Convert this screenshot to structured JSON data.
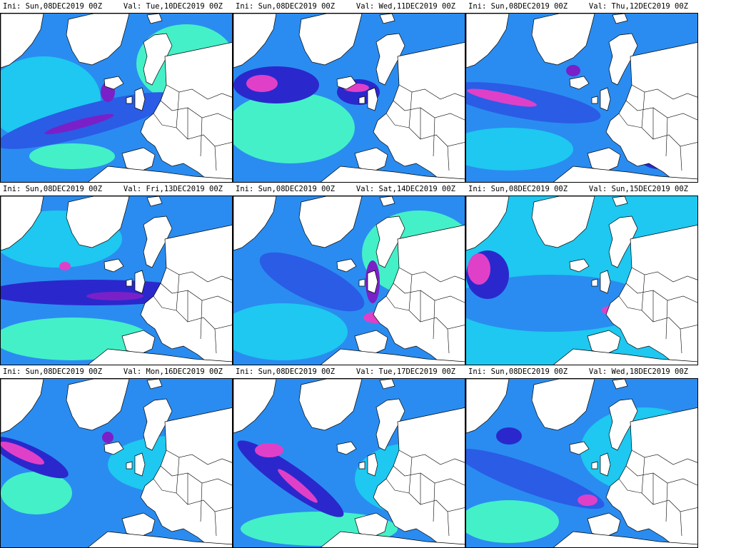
{
  "colors": {
    "background": "#ffffff",
    "light_green": "#44f0c8",
    "cyan": "#1ec8f0",
    "light_blue": "#2a8cf0",
    "blue": "#2a5ce6",
    "dark_blue": "#2a28cc",
    "purple": "#7a20c8",
    "magenta": "#e040c8",
    "land_outline": "#000000"
  },
  "panels": [
    {
      "ini": "Ini: Sun,08DEC2019 00Z",
      "val": "Val: Tue,10DEC2019 00Z"
    },
    {
      "ini": "Ini: Sun,08DEC2019 00Z",
      "val": "Val: Wed,11DEC2019 00Z"
    },
    {
      "ini": "Ini: Sun,08DEC2019 00Z",
      "val": "Val: Thu,12DEC2019 00Z"
    },
    {
      "ini": "Ini: Sun,08DEC2019 00Z",
      "val": "Val: Fri,13DEC2019 00Z"
    },
    {
      "ini": "Ini: Sun,08DEC2019 00Z",
      "val": "Val: Sat,14DEC2019 00Z"
    },
    {
      "ini": "Ini: Sun,08DEC2019 00Z",
      "val": "Val: Sun,15DEC2019 00Z"
    },
    {
      "ini": "Ini: Sun,08DEC2019 00Z",
      "val": "Val: Mon,16DEC2019 00Z"
    },
    {
      "ini": "Ini: Sun,08DEC2019 00Z",
      "val": "Val: Tue,17DEC2019 00Z"
    },
    {
      "ini": "Ini: Sun,08DEC2019 00Z",
      "val": "Val: Wed,18DEC2019 00Z"
    }
  ]
}
